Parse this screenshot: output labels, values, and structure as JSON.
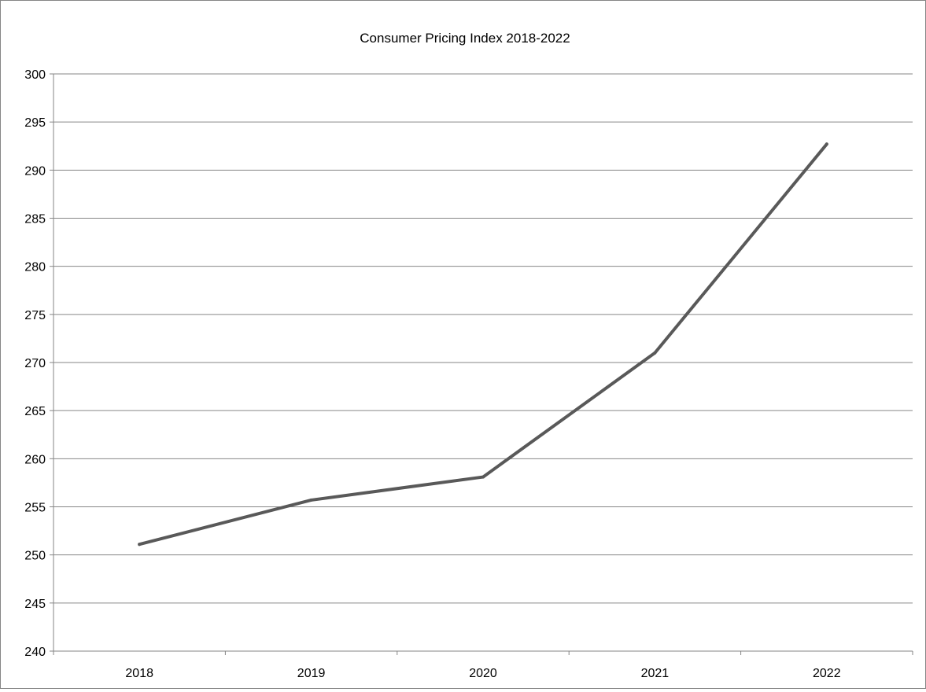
{
  "chart_data": {
    "type": "line",
    "title": "Consumer Pricing Index 2018-2022",
    "xlabel": "",
    "ylabel": "",
    "categories": [
      "2018",
      "2019",
      "2020",
      "2021",
      "2022"
    ],
    "series": [
      {
        "values": [
          251.1,
          255.7,
          258.1,
          271.0,
          292.7
        ]
      }
    ],
    "ylim": [
      240,
      300
    ],
    "yticks": [
      240,
      245,
      250,
      255,
      260,
      265,
      270,
      275,
      280,
      285,
      290,
      295,
      300
    ],
    "grid": true,
    "legend": "none",
    "colors": {
      "line": "#595959",
      "grid": "#868686",
      "axis": "#868686"
    }
  }
}
